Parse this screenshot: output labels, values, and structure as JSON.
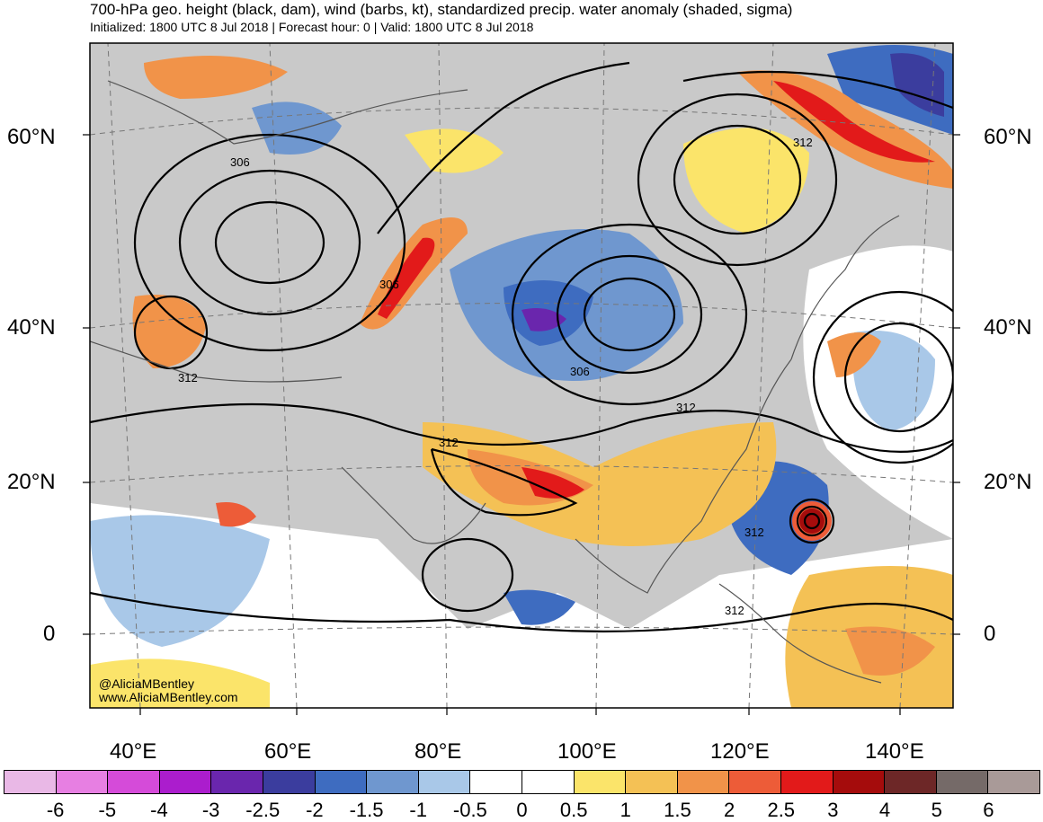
{
  "title": "700-hPa geo. height (black, dam), wind (barbs, kt), standardized precip. water anomaly (shaded, sigma)",
  "subtitle": "Initialized: 1800 UTC 8 Jul 2018 | Forecast hour: 0 | Valid: 1800 UTC 8 Jul 2018",
  "credit": {
    "handle": "@AliciaMBentley",
    "site": "www.AliciaMBentley.com"
  },
  "latitude_labels": [
    "60°N",
    "40°N",
    "20°N",
    "0"
  ],
  "longitude_labels": [
    "40°E",
    "60°E",
    "80°E",
    "100°E",
    "120°E",
    "140°E"
  ],
  "contour_labels": [
    "306",
    "306",
    "312",
    "306",
    "312",
    "312",
    "312",
    "312",
    "312"
  ],
  "colorbar": {
    "colors": [
      "#e9b8e6",
      "#e77fe2",
      "#d54bd9",
      "#ab1dcd",
      "#6a26ad",
      "#3b3d9e",
      "#3e6cc0",
      "#6f97cf",
      "#a9c8e8",
      "#ffffff",
      "#ffffff",
      "#fbe46a",
      "#f4c155",
      "#f19349",
      "#ed5c38",
      "#e21a1a",
      "#a50c0c",
      "#6d2727",
      "#756a68",
      "#a99a98"
    ],
    "labels": [
      "-6",
      "-5",
      "-4",
      "-3",
      "-2.5",
      "-2",
      "-1.5",
      "-1",
      "-0.5",
      "0",
      "0.5",
      "1",
      "1.5",
      "2",
      "2.5",
      "3",
      "4",
      "5",
      "6"
    ]
  }
}
